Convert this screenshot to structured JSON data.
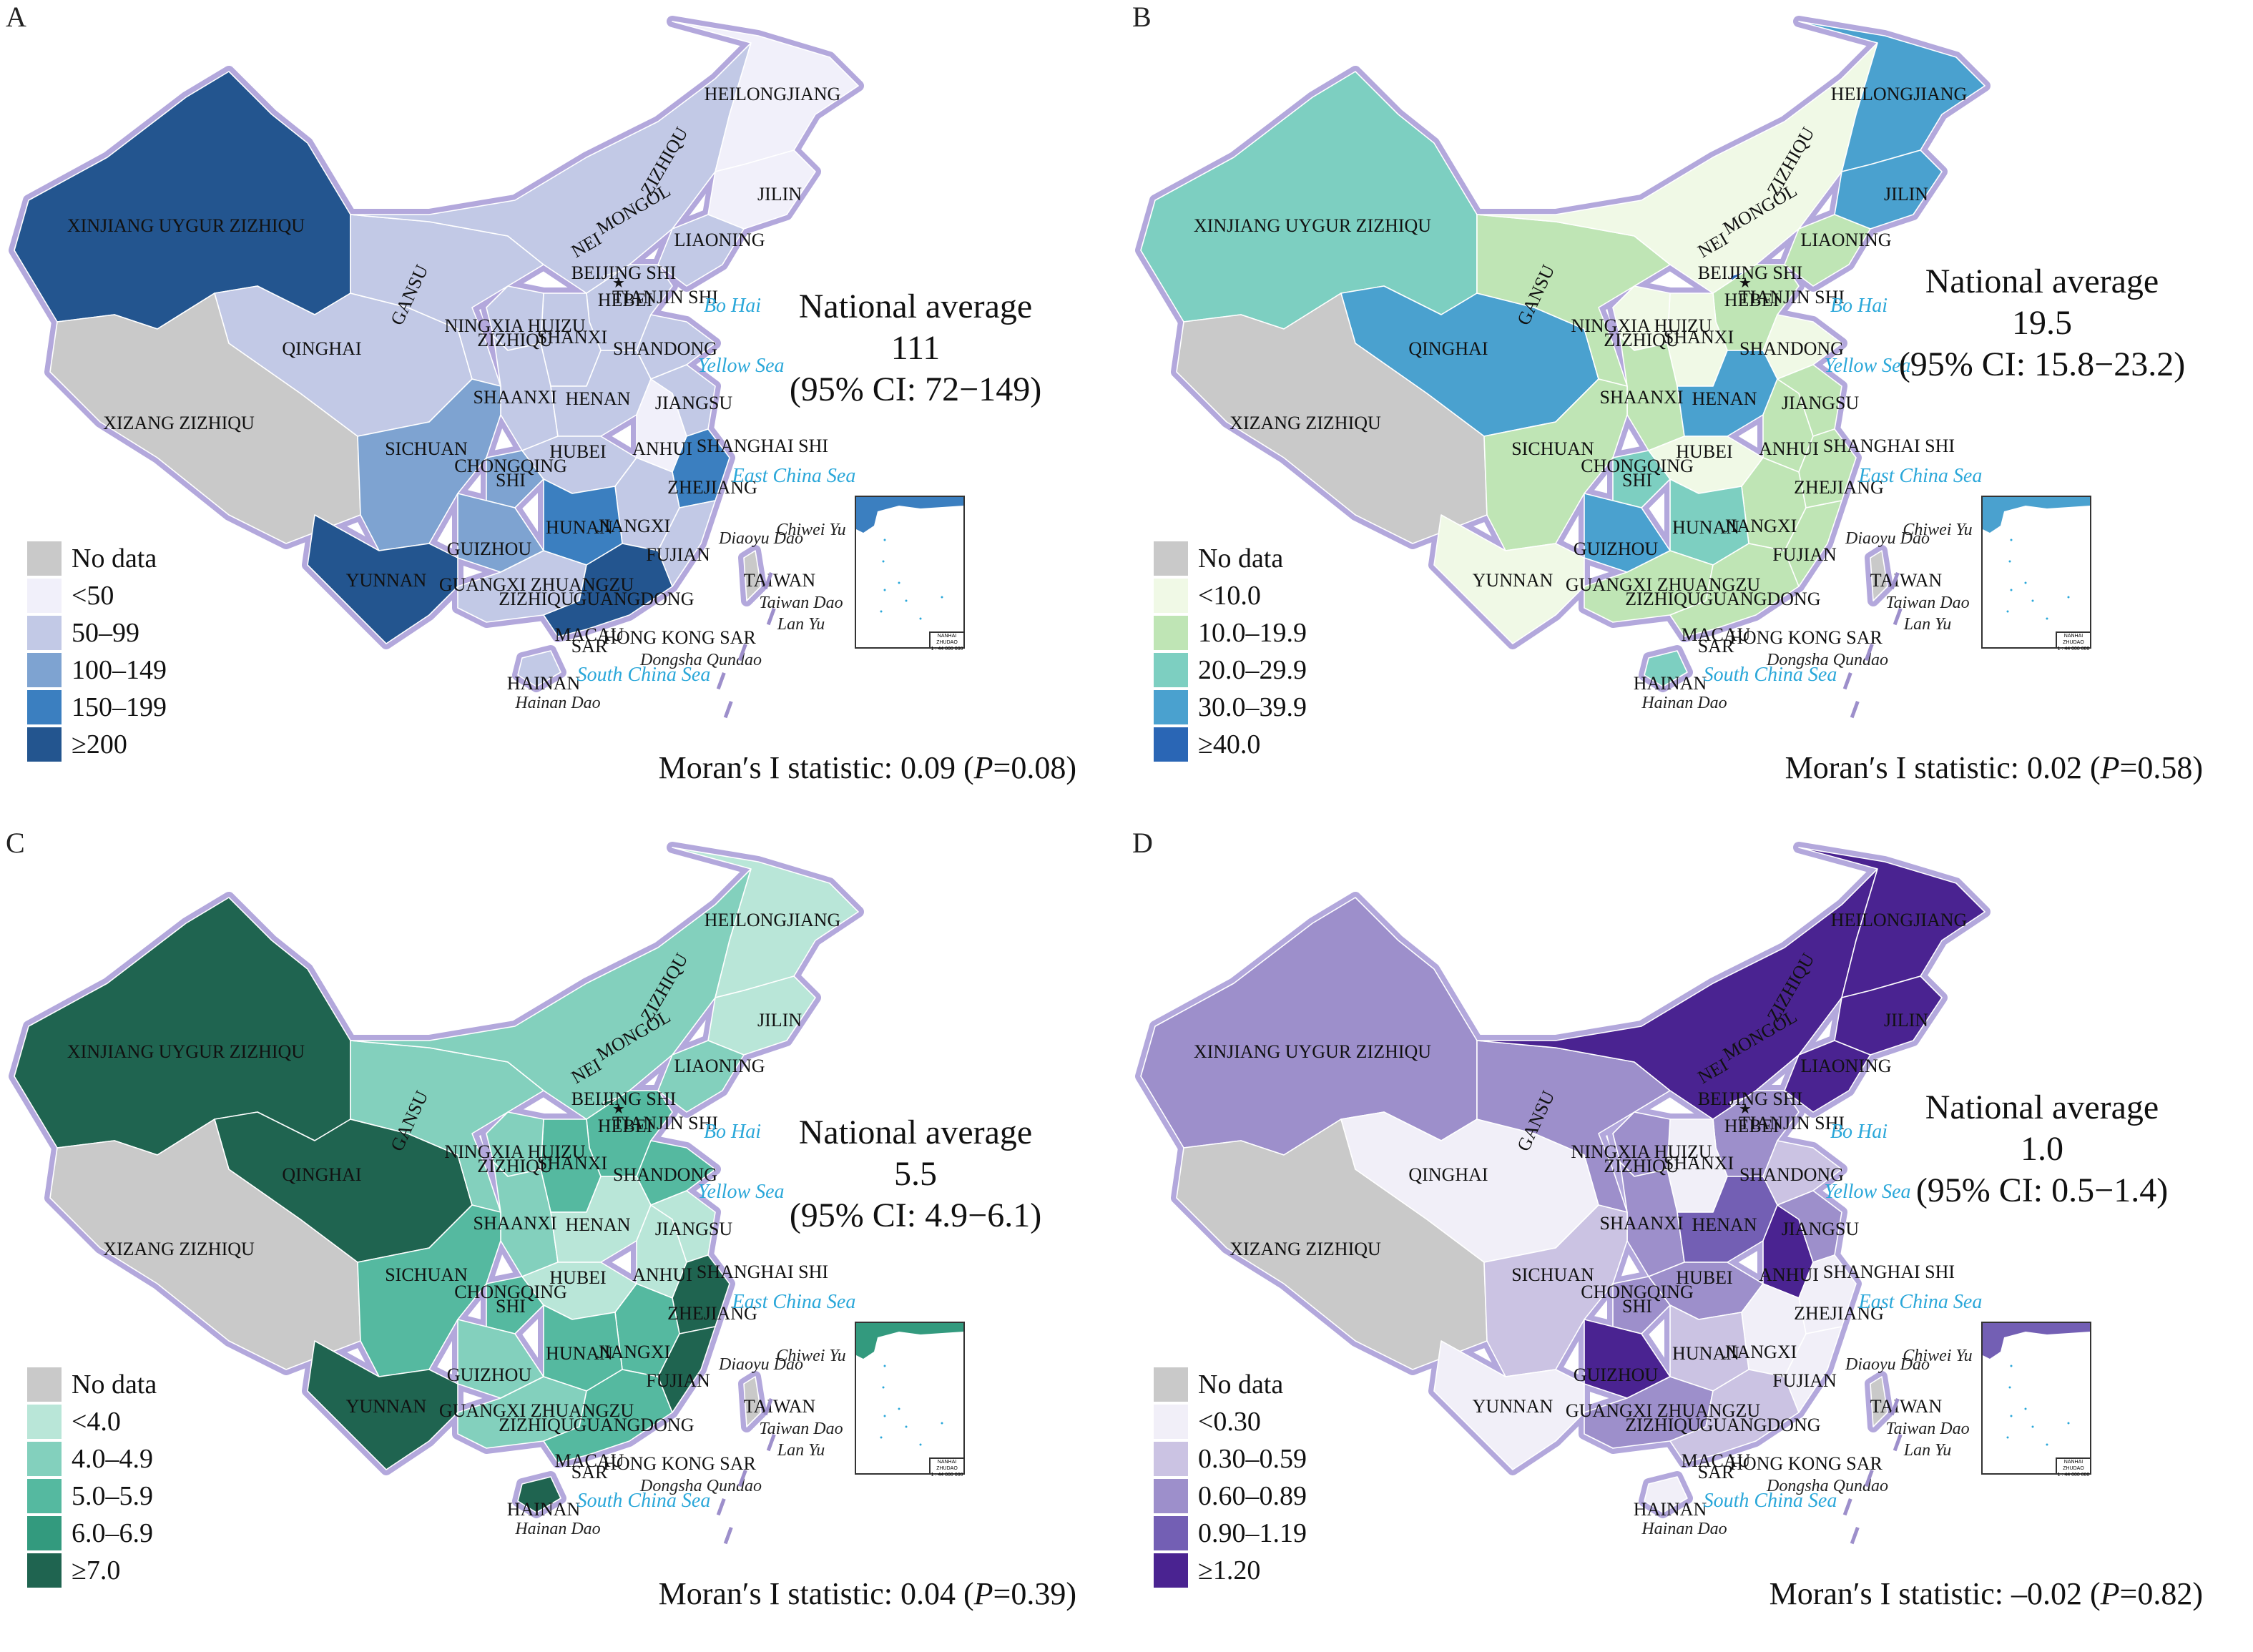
{
  "panels": [
    {
      "label": "A",
      "national_average": {
        "line1": "National average",
        "value": "111",
        "ci": "(95% CI: 72−149)"
      },
      "moran": {
        "prefix": "Moran′s I statistic: 0.09 (",
        "p": "P",
        "suffix": "=0.08)"
      },
      "legend": [
        {
          "label": "No data",
          "color": "#c9c9c9"
        },
        {
          "label": "<50",
          "color": "#f1f0fa"
        },
        {
          "label": "50–99",
          "color": "#c2c9e6"
        },
        {
          "label": "100–149",
          "color": "#7ea3d1"
        },
        {
          "label": "150–199",
          "color": "#3b7fc0"
        },
        {
          "label": "≥200",
          "color": "#23558f"
        }
      ],
      "regions": {
        "xinjiang": 5,
        "xizang": 0,
        "qinghai": 2,
        "gansu": 2,
        "neimongol": 2,
        "heilongjiang": 1,
        "jilin": 1,
        "liaoning": 2,
        "beijing": 2,
        "hebei": 2,
        "shanxi": 2,
        "shandong": 2,
        "henan": 2,
        "shaanxi": 2,
        "ningxia": 2,
        "sichuan": 3,
        "chongqing": 3,
        "hubei": 2,
        "anhui": 1,
        "jiangsu": 2,
        "zhejiang": 4,
        "jiangxi": 2,
        "hunan": 4,
        "guizhou": 3,
        "yunnan": 5,
        "guangxi": 2,
        "guangdong": 5,
        "fujian": 2,
        "hainan": 2,
        "taiwan": 0
      }
    },
    {
      "label": "B",
      "national_average": {
        "line1": "National average",
        "value": "19.5",
        "ci": "(95% CI: 15.8−23.2)"
      },
      "moran": {
        "prefix": "Moran′s I statistic: 0.02 (",
        "p": "P",
        "suffix": "=0.58)"
      },
      "legend": [
        {
          "label": "No data",
          "color": "#c9c9c9"
        },
        {
          "label": "<10.0",
          "color": "#f0f9e6"
        },
        {
          "label": "10.0–19.9",
          "color": "#bfe5b5"
        },
        {
          "label": "20.0–29.9",
          "color": "#7dcfc1"
        },
        {
          "label": "30.0–39.9",
          "color": "#4aa1cf"
        },
        {
          "label": "≥40.0",
          "color": "#2a66b5"
        }
      ],
      "regions": {
        "xinjiang": 3,
        "xizang": 0,
        "qinghai": 4,
        "gansu": 2,
        "neimongol": 1,
        "heilongjiang": 4,
        "jilin": 4,
        "liaoning": 2,
        "beijing": 5,
        "hebei": 2,
        "shanxi": 1,
        "shandong": 1,
        "henan": 4,
        "shaanxi": 2,
        "ningxia": 1,
        "sichuan": 2,
        "chongqing": 3,
        "hubei": 1,
        "anhui": 2,
        "jiangsu": 2,
        "zhejiang": 2,
        "jiangxi": 2,
        "hunan": 3,
        "guizhou": 4,
        "yunnan": 1,
        "guangxi": 2,
        "guangdong": 2,
        "fujian": 2,
        "hainan": 3,
        "taiwan": 0
      }
    },
    {
      "label": "C",
      "national_average": {
        "line1": "National average",
        "value": "5.5",
        "ci": "(95% CI: 4.9−6.1)"
      },
      "moran": {
        "prefix": "Moran′s I statistic: 0.04 (",
        "p": "P",
        "suffix": "=0.39)"
      },
      "legend": [
        {
          "label": "No data",
          "color": "#c9c9c9"
        },
        {
          "label": "<4.0",
          "color": "#b9e6d8"
        },
        {
          "label": "4.0–4.9",
          "color": "#83d0bd"
        },
        {
          "label": "5.0–5.9",
          "color": "#55b9a0"
        },
        {
          "label": "6.0–6.9",
          "color": "#339a7e"
        },
        {
          "label": "≥7.0",
          "color": "#1f6450"
        }
      ],
      "regions": {
        "xinjiang": 5,
        "xizang": 0,
        "qinghai": 5,
        "gansu": 2,
        "neimongol": 2,
        "heilongjiang": 1,
        "jilin": 1,
        "liaoning": 2,
        "beijing": 5,
        "hebei": 3,
        "shanxi": 3,
        "shandong": 3,
        "henan": 1,
        "shaanxi": 2,
        "ningxia": 2,
        "sichuan": 3,
        "chongqing": 3,
        "hubei": 1,
        "anhui": 1,
        "jiangsu": 1,
        "zhejiang": 5,
        "jiangxi": 3,
        "hunan": 3,
        "guizhou": 2,
        "yunnan": 5,
        "guangxi": 2,
        "guangdong": 3,
        "fujian": 5,
        "hainan": 5,
        "taiwan": 0
      }
    },
    {
      "label": "D",
      "national_average": {
        "line1": "National average",
        "value": "1.0",
        "ci": "(95% CI: 0.5−1.4)"
      },
      "moran": {
        "prefix": "Moran′s I statistic: –0.02 (",
        "p": "P",
        "suffix": "=0.82)"
      },
      "legend": [
        {
          "label": "No data",
          "color": "#c9c9c9"
        },
        {
          "label": "<0.30",
          "color": "#f1eff8"
        },
        {
          "label": "0.30–0.59",
          "color": "#cbc3e3"
        },
        {
          "label": "0.60–0.89",
          "color": "#9d8fcb"
        },
        {
          "label": "0.90–1.19",
          "color": "#735fb4"
        },
        {
          "label": "≥1.20",
          "color": "#4a2391"
        }
      ],
      "regions": {
        "xinjiang": 3,
        "xizang": 0,
        "qinghai": 1,
        "gansu": 3,
        "neimongol": 5,
        "heilongjiang": 5,
        "jilin": 5,
        "liaoning": 5,
        "beijing": 2,
        "hebei": 3,
        "shanxi": 1,
        "shandong": 2,
        "henan": 4,
        "shaanxi": 3,
        "ningxia": 3,
        "sichuan": 2,
        "chongqing": 3,
        "hubei": 3,
        "anhui": 5,
        "jiangsu": 3,
        "zhejiang": 1,
        "jiangxi": 1,
        "hunan": 2,
        "guizhou": 5,
        "yunnan": 1,
        "guangxi": 3,
        "guangdong": 2,
        "fujian": 1,
        "hainan": 1,
        "taiwan": 0
      }
    }
  ],
  "province_labels": {
    "xinjiang": "XINJIANG  UYGUR  ZIZHIQU",
    "xizang": "XIZANG   ZIZHIQU",
    "qinghai": "QINGHAI",
    "gansu": "GANSU",
    "neimongol_a": "NEI",
    "neimongol_b": "MONGOL",
    "neimongol_c": "ZIZHIQU",
    "heilongjiang": "HEILONGJIANG",
    "jilin": "JILIN",
    "liaoning": "LIAONING",
    "beijing": "BEIJING SHI",
    "tianjin": "TIANJIN SHI",
    "hebei": "HEBEI",
    "shanxi": "SHANXI",
    "shandong": "SHANDONG",
    "henan": "HENAN",
    "shaanxi": "SHAANXI",
    "ningxia_a": "NINGXIA HUIZU",
    "ningxia_b": "ZIZHIQU",
    "sichuan": "SICHUAN",
    "chongqing_a": "CHONGQING",
    "chongqing_b": "SHI",
    "hubei": "HUBEI",
    "anhui": "ANHUI",
    "jiangsu": "JIANGSU",
    "shanghai": "SHANGHAI SHI",
    "zhejiang": "ZHEJIANG",
    "jiangxi": "JIANGXI",
    "hunan": "HUNAN",
    "guizhou": "GUIZHOU",
    "yunnan": "YUNNAN",
    "guangxi_a": "GUANGXI ZHUANGZU",
    "guangxi_b": "ZIZHIQU",
    "guangdong": "GUANGDONG",
    "fujian": "FUJIAN",
    "taiwan": "TAIWAN",
    "hainan": "HAINAN",
    "macau_a": "MACAU",
    "macau_b": "SAR",
    "hongkong": "HONG KONG SAR",
    "bohai": "Bo Hai",
    "yellowsea": "Yellow Sea",
    "eastchina": "East   China   Sea",
    "southchina": "South   China   Sea",
    "hainandao": "Hainan Dao",
    "taiwandao": "Taiwan Dao",
    "dongsha": "Dongsha Qundao",
    "diaoyu": "Diaoyu Dao",
    "chiwei": "Chiwei Yu",
    "lanyu": "Lan Yu"
  },
  "inset": {
    "title": "NANHAI ZHUDAO",
    "scale": "1 : 44 000 000"
  }
}
